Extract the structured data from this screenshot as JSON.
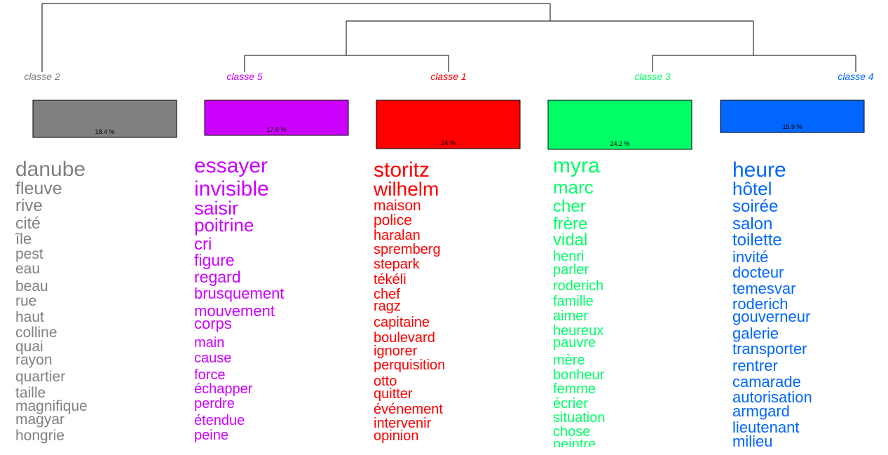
{
  "chart_data": {
    "type": "dendrogram",
    "classes": [
      {
        "label": "classe  2",
        "percent": "18.4 %",
        "color": "#808080",
        "words": [
          "danube",
          "fleuve",
          "rive",
          "cité",
          "île",
          "pest",
          "eau",
          "beau",
          "rue",
          "haut",
          "colline",
          "quai",
          "rayon",
          "quartier",
          "taille",
          "magnifique",
          "magyar",
          "hongrie"
        ]
      },
      {
        "label": "classe  5",
        "percent": "17.5 %",
        "color": "#CC00FF",
        "words": [
          "essayer",
          "invisible",
          "saisir",
          "poitrine",
          "cri",
          "figure",
          "regard",
          "brusquement",
          "mouvement",
          "corps",
          "main",
          "cause",
          "force",
          "échapper",
          "perdre",
          "étendue",
          "peine"
        ]
      },
      {
        "label": "classe  1",
        "percent": "24 %",
        "color": "#FF0000",
        "words": [
          "storitz",
          "wilhelm",
          "maison",
          "police",
          "haralan",
          "spremberg",
          "stepark",
          "tékéli",
          "chef",
          "ragz",
          "capitaine",
          "boulevard",
          "ignorer",
          "perquisition",
          "otto",
          "quitter",
          "événement",
          "intervenir",
          "opinion"
        ]
      },
      {
        "label": "classe  3",
        "percent": "24.2 %",
        "color": "#00FF66",
        "words": [
          "myra",
          "marc",
          "cher",
          "frère",
          "vidal",
          "henri",
          "parler",
          "roderich",
          "famille",
          "aimer",
          "heureux",
          "pauvre",
          "mère",
          "bonheur",
          "femme",
          "écrier",
          "situation",
          "chose",
          "peintre"
        ]
      },
      {
        "label": "classe  4",
        "percent": "15.9 %",
        "color": "#0066FF",
        "words": [
          "heure",
          "hôtel",
          "soirée",
          "salon",
          "toilette",
          "invité",
          "docteur",
          "temesvar",
          "roderich",
          "gouverneur",
          "galerie",
          "transporter",
          "rentrer",
          "camarade",
          "autorisation",
          "armgard",
          "lieutenant",
          "milieu"
        ]
      }
    ]
  }
}
